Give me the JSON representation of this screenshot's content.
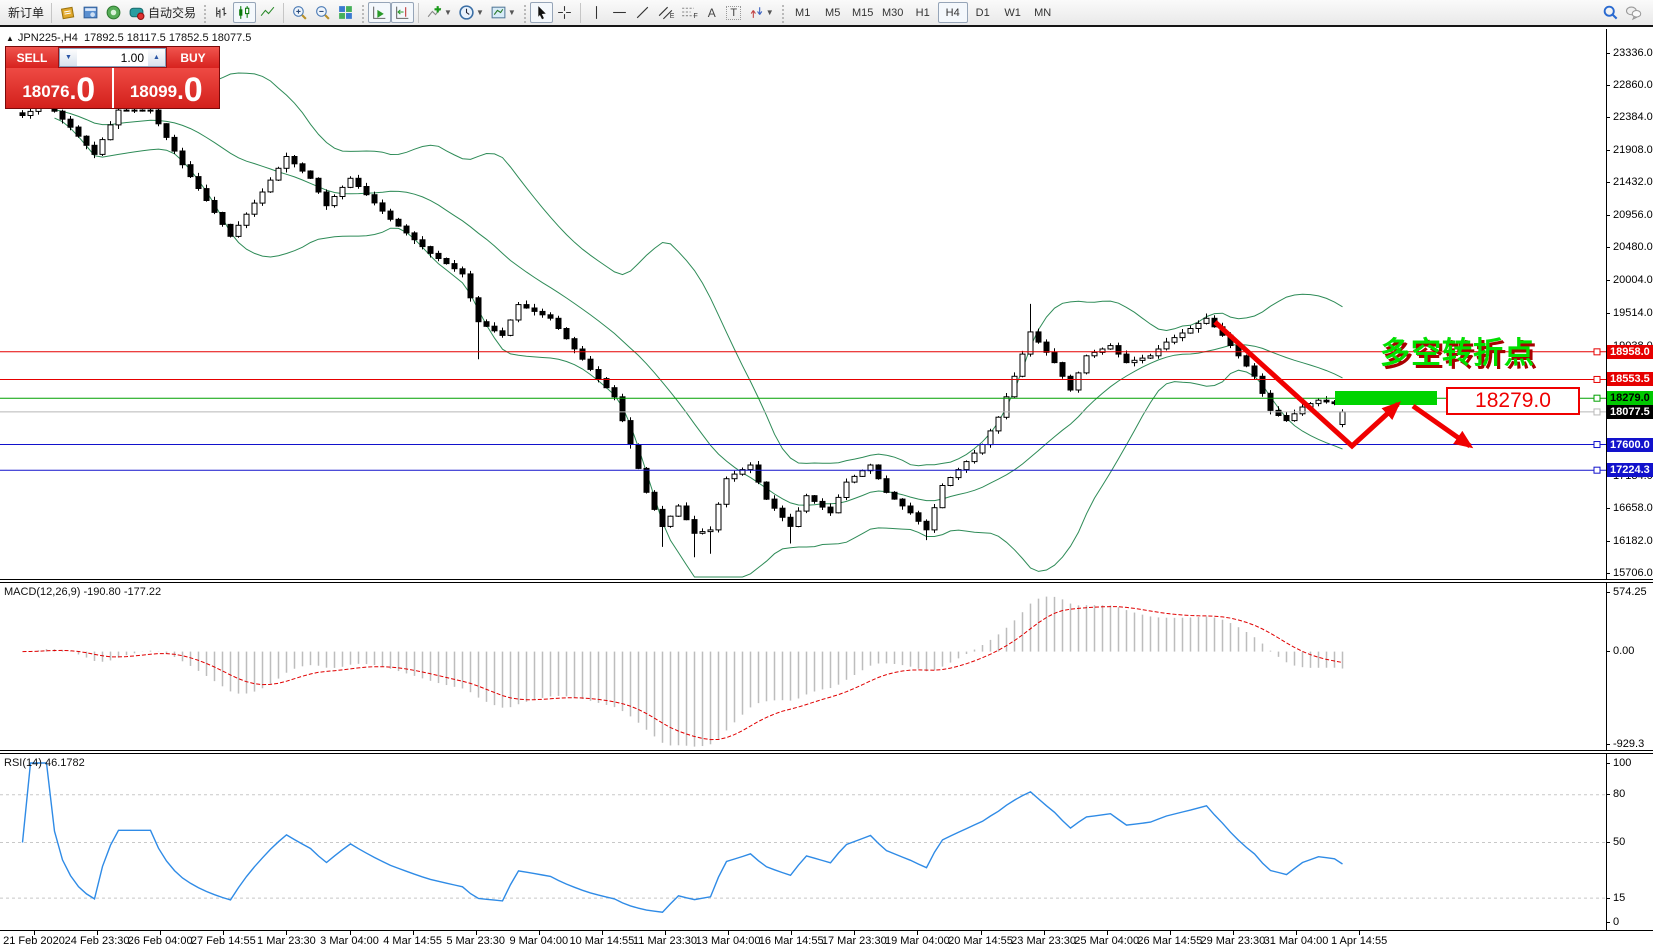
{
  "toolbar": {
    "new_order_label": "新订单",
    "autotrading_label": "自动交易",
    "glyph_a": "A",
    "glyph_t": "T",
    "glyph_e": "E",
    "glyph_f": "F",
    "timeframes": [
      "M1",
      "M5",
      "M15",
      "M30",
      "H1",
      "H4",
      "D1",
      "W1",
      "MN"
    ],
    "active_timeframe": "H4"
  },
  "chart_header": {
    "collapse_icon": "▲",
    "symbol": "JPN225-,H4",
    "open": "17892.5",
    "high": "18117.5",
    "low": "17852.5",
    "close": "18077.5"
  },
  "trade_panel": {
    "sell_label": "SELL",
    "buy_label": "BUY",
    "volume": "1.00",
    "volume_down_icon": "▼",
    "volume_up_icon": "▲",
    "sell_price_main": "18076",
    "sell_price_sep": ".",
    "sell_price_big": "0",
    "buy_price_main": "18099",
    "buy_price_sep": ".",
    "buy_price_big": "0"
  },
  "price_axis": {
    "ticks": [
      "23336.0",
      "22860.0",
      "22384.0",
      "21908.0",
      "21432.0",
      "20956.0",
      "20480.0",
      "20004.0",
      "19514.0",
      "19038.0",
      "17134.0",
      "16658.0",
      "16182.0",
      "15706.0"
    ]
  },
  "hlines": [
    {
      "price": 18958.0,
      "label": "18958.0",
      "color": "#e60000",
      "bg": "#e60000",
      "fg": "#ffffff"
    },
    {
      "price": 18553.5,
      "label": "18553.5",
      "color": "#e60000",
      "bg": "#e60000",
      "fg": "#ffffff"
    },
    {
      "price": 18279.0,
      "label": "18279.0",
      "color": "#00a000",
      "bg": "#00c800",
      "fg": "#000000"
    },
    {
      "price": 18077.5,
      "label": "18077.5",
      "color": "#b8b8b8",
      "bg": "#000000",
      "fg": "#ffffff"
    },
    {
      "price": 17600.0,
      "label": "17600.0",
      "color": "#1212cc",
      "bg": "#1212cc",
      "fg": "#ffffff"
    },
    {
      "price": 17224.3,
      "label": "17224.3",
      "color": "#1212cc",
      "bg": "#1212cc",
      "fg": "#ffffff"
    }
  ],
  "annotations": {
    "turning_point_text": "多空转折点",
    "price_callout_text": "18279.0"
  },
  "macd": {
    "name": "MACD(12,26,9)",
    "main_value": "-190.80",
    "signal_value": "-177.22",
    "axis_max": "574.25",
    "axis_zero": "0.00",
    "axis_min": "-929.3"
  },
  "rsi": {
    "name": "RSI(14)",
    "value": "46.1782",
    "axis_labels": [
      "100",
      "80",
      "50",
      "15",
      "0"
    ],
    "level_lines": [
      80,
      50,
      15
    ]
  },
  "date_axis": [
    "21 Feb 2020",
    "24 Feb 23:30",
    "26 Feb 04:00",
    "27 Feb 14:55",
    "1 Mar 23:30",
    "3 Mar 04:00",
    "4 Mar 14:55",
    "5 Mar 23:30",
    "9 Mar 04:00",
    "10 Mar 14:55",
    "11 Mar 23:30",
    "13 Mar 04:00",
    "16 Mar 14:55",
    "17 Mar 23:30",
    "19 Mar 04:00",
    "20 Mar 14:55",
    "23 Mar 23:30",
    "25 Mar 04:00",
    "26 Mar 14:55",
    "29 Mar 23:30",
    "31 Mar 04:00",
    "1 Apr 14:55"
  ],
  "chart_data": {
    "type": "candlestick",
    "symbol": "JPN225-",
    "timeframe": "H4",
    "candle_count": 166,
    "last_candle_ohlc": {
      "open": 17892.5,
      "high": 18117.5,
      "low": 17852.5,
      "close": 18077.5
    },
    "price_range_visible": [
      15706.0,
      23336.0
    ],
    "close_path": [
      [
        0,
        22420
      ],
      [
        3,
        22600
      ],
      [
        6,
        22250
      ],
      [
        9,
        21850
      ],
      [
        12,
        22500
      ],
      [
        16,
        22500
      ],
      [
        20,
        21700
      ],
      [
        26,
        20650
      ],
      [
        30,
        21300
      ],
      [
        33,
        21820
      ],
      [
        36,
        21500
      ],
      [
        38,
        21100
      ],
      [
        41,
        21500
      ],
      [
        46,
        20900
      ],
      [
        51,
        20400
      ],
      [
        55,
        20100
      ],
      [
        57,
        19400
      ],
      [
        60,
        19200
      ],
      [
        62,
        19650
      ],
      [
        66,
        19450
      ],
      [
        71,
        18700
      ],
      [
        74,
        18300
      ],
      [
        76,
        17600
      ],
      [
        78,
        16900
      ],
      [
        80,
        16400
      ],
      [
        82,
        16700
      ],
      [
        84,
        16300
      ],
      [
        86,
        16350
      ],
      [
        88,
        17100
      ],
      [
        91,
        17300
      ],
      [
        93,
        16800
      ],
      [
        96,
        16400
      ],
      [
        98,
        16850
      ],
      [
        101,
        16600
      ],
      [
        103,
        17050
      ],
      [
        106,
        17300
      ],
      [
        108,
        16900
      ],
      [
        111,
        16600
      ],
      [
        113,
        16350
      ],
      [
        115,
        17000
      ],
      [
        118,
        17350
      ],
      [
        120,
        17600
      ],
      [
        122,
        18000
      ],
      [
        124,
        18600
      ],
      [
        126,
        19250
      ],
      [
        129,
        18800
      ],
      [
        131,
        18400
      ],
      [
        133,
        18900
      ],
      [
        136,
        19050
      ],
      [
        138,
        18800
      ],
      [
        141,
        18900
      ],
      [
        143,
        19100
      ],
      [
        146,
        19300
      ],
      [
        148,
        19450
      ],
      [
        150,
        19200
      ],
      [
        152,
        18900
      ],
      [
        154,
        18600
      ],
      [
        156,
        18100
      ],
      [
        158,
        17950
      ],
      [
        160,
        18150
      ],
      [
        162,
        18250
      ],
      [
        164,
        18200
      ],
      [
        165,
        18077.5
      ]
    ],
    "wick_highs": [
      [
        3,
        22860
      ],
      [
        16,
        22700
      ],
      [
        126,
        19660
      ],
      [
        148,
        19520
      ]
    ],
    "wick_lows": [
      [
        57,
        18850
      ],
      [
        80,
        16100
      ],
      [
        84,
        15950
      ],
      [
        86,
        16000
      ],
      [
        96,
        16150
      ],
      [
        113,
        16200
      ]
    ],
    "overlays": {
      "bollinger_bands": {
        "period": 20,
        "deviation": 2,
        "color": "#2E8B57"
      }
    },
    "indicators": [
      {
        "name": "MACD",
        "params": [
          12,
          26,
          9
        ],
        "current_main": -190.8,
        "current_signal": -177.22,
        "axis": [
          574.25,
          0.0,
          -929.3
        ]
      },
      {
        "name": "RSI",
        "params": [
          14
        ],
        "current": 46.1782,
        "levels": [
          80,
          50,
          15
        ]
      }
    ]
  }
}
